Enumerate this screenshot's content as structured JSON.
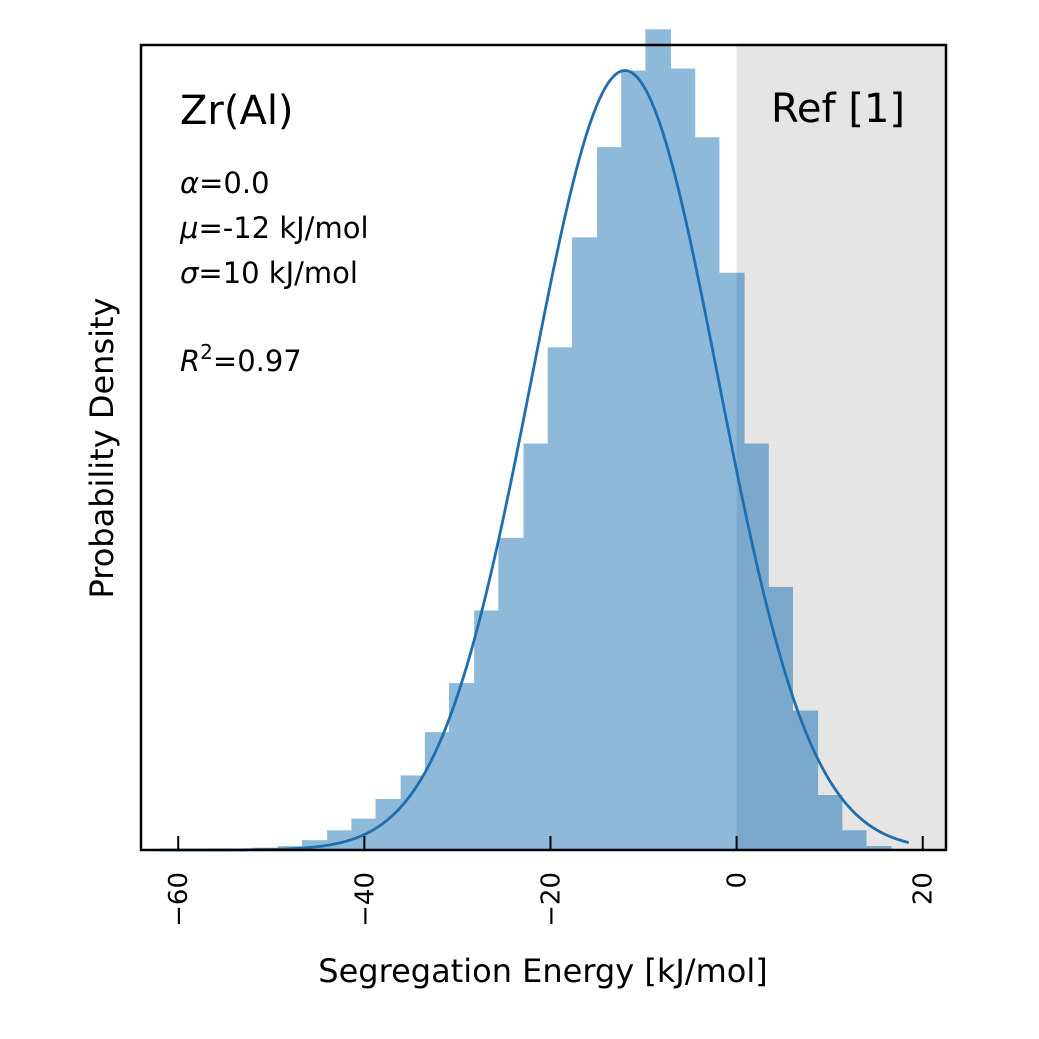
{
  "chart_data": {
    "type": "bar",
    "subtype": "histogram-with-fit",
    "xlabel": "Segregation Energy [kJ/mol]",
    "ylabel": "Probability Density",
    "xlim": [
      -64,
      22.5
    ],
    "ylim": [
      0,
      0.041
    ],
    "y_ticks_shown": false,
    "x_ticks": [
      -60,
      -40,
      -20,
      0,
      20
    ],
    "x_tick_labels": [
      "−60",
      "−40",
      "−20",
      "0",
      "20"
    ],
    "grid": false,
    "bin_edges": [
      -62.5,
      -59.8,
      -57.2,
      -54.6,
      -52.0,
      -49.3,
      -46.7,
      -44.0,
      -41.4,
      -38.8,
      -36.1,
      -33.5,
      -30.9,
      -28.2,
      -25.6,
      -22.9,
      -20.3,
      -17.7,
      -15.0,
      -12.4,
      -9.8,
      -7.1,
      -4.5,
      -1.9,
      0.8,
      3.4,
      6.0,
      8.7,
      11.3,
      13.9,
      16.6
    ],
    "values": [
      0.0,
      2e-05,
      4e-05,
      7e-05,
      0.00012,
      0.0002,
      0.0005,
      0.001,
      0.0016,
      0.0026,
      0.0038,
      0.006,
      0.0085,
      0.0122,
      0.0159,
      0.0207,
      0.0256,
      0.0312,
      0.0358,
      0.0397,
      0.0418,
      0.0398,
      0.0363,
      0.0294,
      0.0207,
      0.0134,
      0.0071,
      0.0028,
      0.001,
      0.0002
    ],
    "bar_color": "#8fb9d9",
    "fit_curve": {
      "kind": "gaussian",
      "mu": -12,
      "sigma": 10,
      "x_range": [
        -62,
        18.5
      ],
      "color": "#1f6fae"
    },
    "shaded_region": {
      "x_from": 0,
      "x_to": 22.5,
      "color": "#e5e5e5",
      "label": "Ref [1]"
    },
    "annotations": {
      "title": "Zr(Al)",
      "alpha_text": "=0.0",
      "mu_text": "=-12 kJ/mol",
      "sigma_text": "=10 kJ/mol",
      "r2_text": "=0.97",
      "alpha_symbol": "α",
      "mu_symbol": "μ",
      "sigma_symbol": "σ",
      "r2_symbol": "R",
      "r2_sup": "2"
    }
  }
}
